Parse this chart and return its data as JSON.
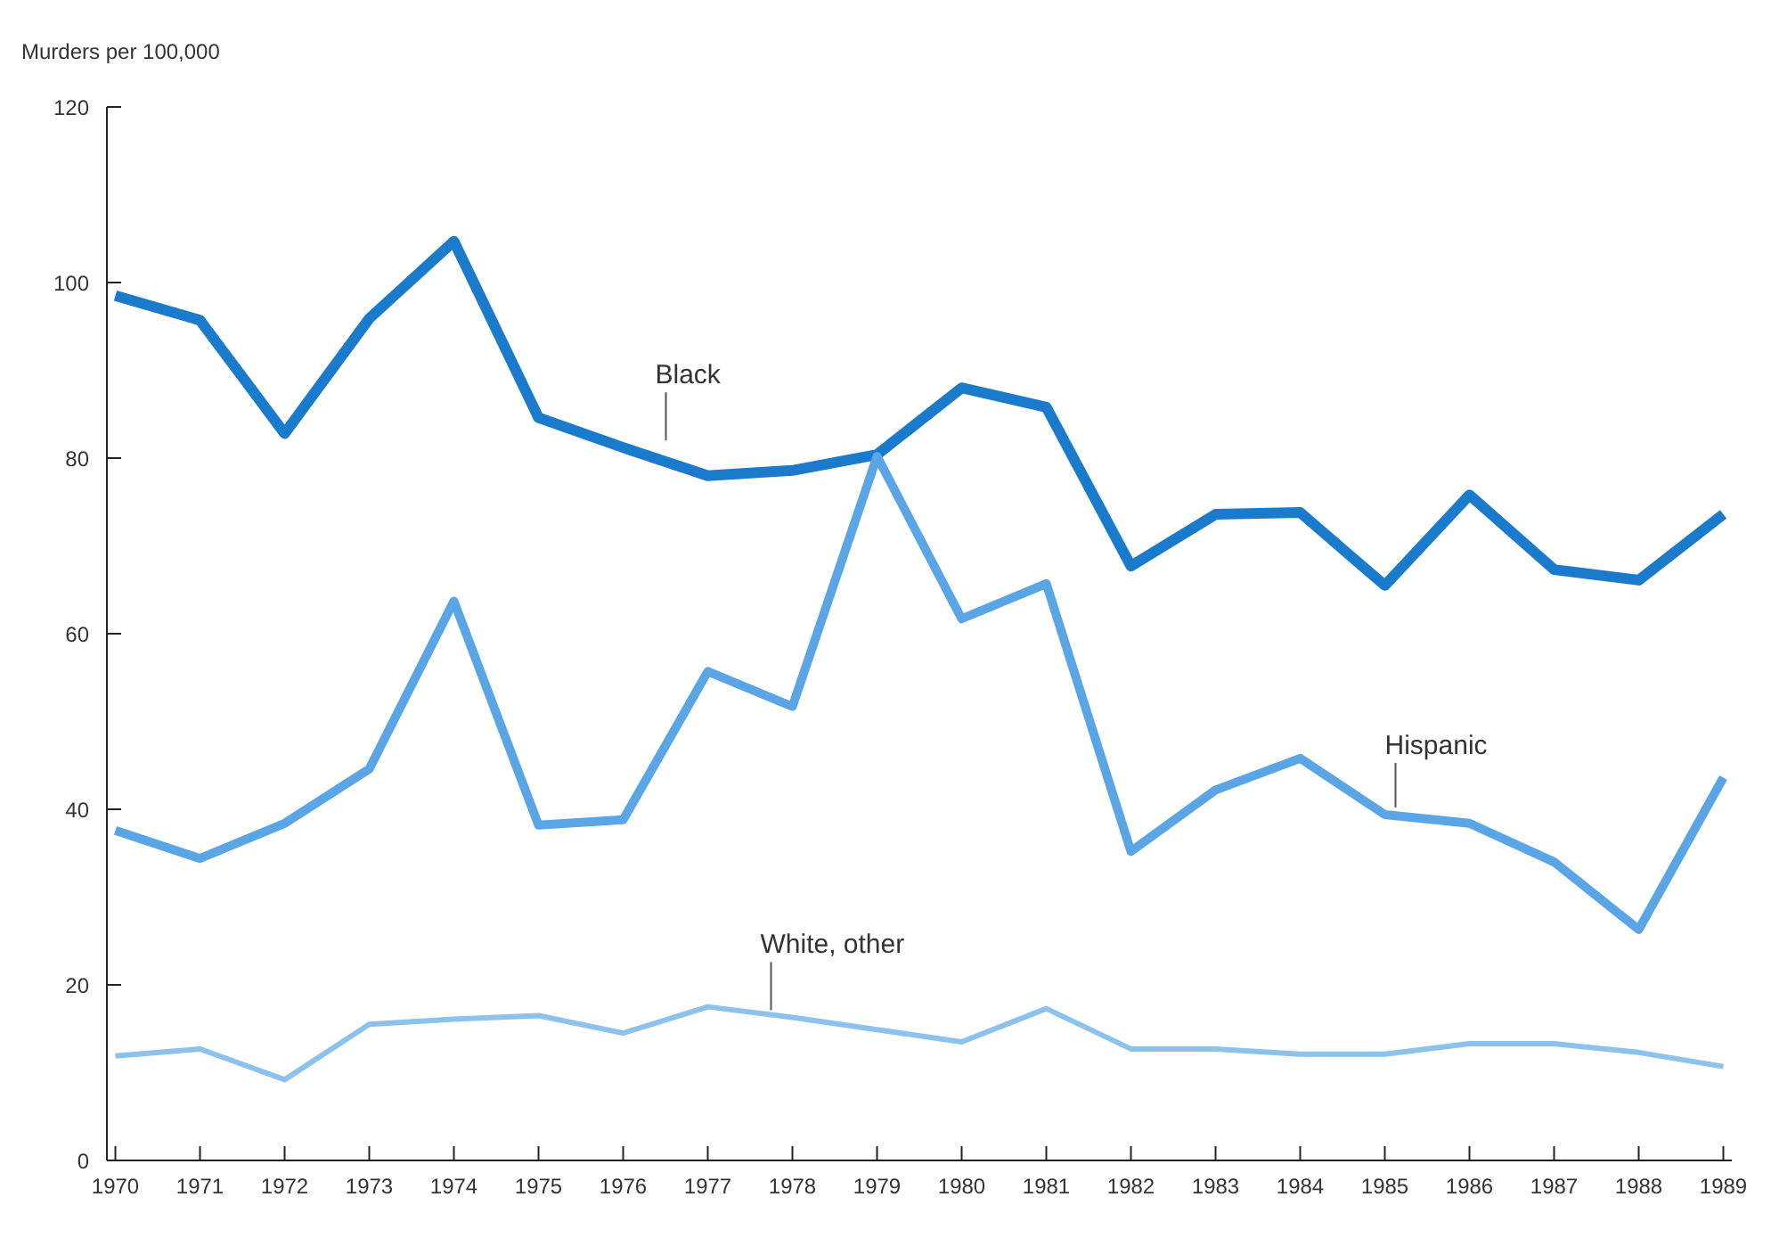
{
  "chart_data": {
    "type": "line",
    "ylabel": "Murders per 100,000",
    "categories": [
      "1970",
      "1971",
      "1972",
      "1973",
      "1974",
      "1975",
      "1976",
      "1977",
      "1978",
      "1979",
      "1980",
      "1981",
      "1982",
      "1983",
      "1984",
      "1985",
      "1986",
      "1987",
      "1988",
      "1989"
    ],
    "series": [
      {
        "name": "Black",
        "color": "#1a7acc",
        "values": [
          98.5,
          95.7,
          82.8,
          95.9,
          104.7,
          84.6,
          81.2,
          78.0,
          78.6,
          80.4,
          88.0,
          85.8,
          67.7,
          73.6,
          73.8,
          65.5,
          75.8,
          67.3,
          66.1,
          73.6
        ]
      },
      {
        "name": "Hispanic",
        "color": "#5aa5e6",
        "values": [
          37.6,
          34.4,
          38.4,
          44.6,
          63.7,
          38.2,
          38.8,
          55.7,
          51.7,
          80.2,
          61.7,
          65.7,
          35.2,
          42.2,
          45.8,
          39.4,
          38.4,
          34.0,
          26.3,
          43.6
        ]
      },
      {
        "name": "White, other",
        "color": "#8cc2ec",
        "values": [
          11.9,
          12.7,
          9.2,
          15.5,
          16.1,
          16.5,
          14.5,
          17.5,
          16.3,
          14.9,
          13.5,
          17.3,
          12.7,
          12.7,
          12.1,
          12.1,
          13.3,
          13.3,
          12.3,
          10.7
        ]
      }
    ],
    "ylim": [
      0,
      120
    ],
    "yticks": [
      0,
      20,
      40,
      60,
      80,
      100,
      120
    ],
    "grid": false,
    "legend": false,
    "marker": "none",
    "line_style": "solid"
  }
}
